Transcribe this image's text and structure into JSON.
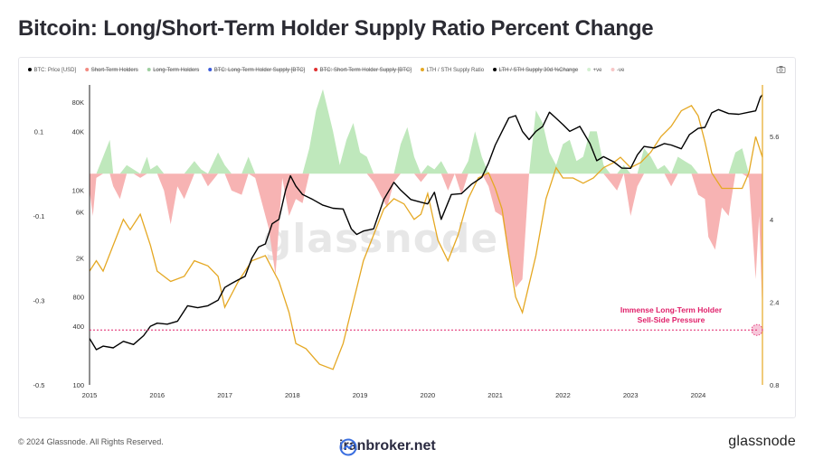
{
  "title": "Bitcoin: Long/Short-Term Holder Supply Ratio Percent Change",
  "legend": [
    {
      "label": "BTC: Price [USD]",
      "color": "#000000",
      "struck": false
    },
    {
      "label": "Short-Term Holders",
      "color": "#f28b82",
      "struck": true
    },
    {
      "label": "Long-Term Holders",
      "color": "#9ecfa0",
      "struck": true
    },
    {
      "label": "BTC: Long-Term Holder Supply [BTC]",
      "color": "#3b5bdb",
      "struck": true
    },
    {
      "label": "BTC: Short-Term Holder Supply [BTC]",
      "color": "#e03131",
      "struck": true
    },
    {
      "label": "LTH / STH Supply Ratio",
      "color": "#e5a823",
      "struck": false
    },
    {
      "label": "LTH / STH Supply 30d %Change",
      "color": "#000000",
      "struck": true
    },
    {
      "label": "+ve",
      "color": "#d3f0d1",
      "struck": false
    },
    {
      "label": "-ve",
      "color": "#f7c6c6",
      "struck": false
    }
  ],
  "camera_icon": "camera-icon",
  "annotation": {
    "line1": "Immense Long-Term Holder",
    "line2": "Sell-Side Pressure",
    "color": "#e0206a"
  },
  "watermark": "glassnode",
  "footer": {
    "copyright": "© 2024 Glassnode. All Rights Reserved.",
    "center_brand": "iranbroker.net",
    "right_brand": "glassnode"
  },
  "chart_data": {
    "type": "line",
    "x_ticks": [
      "2015",
      "2016",
      "2017",
      "2018",
      "2019",
      "2020",
      "2021",
      "2022",
      "2023",
      "2024"
    ],
    "x_range": [
      2015.0,
      2024.95
    ],
    "left_axis_pct_change": {
      "ticks": [
        "0.1",
        "-0.1",
        "-0.3",
        "-0.5"
      ],
      "range": [
        -0.5,
        0.21
      ]
    },
    "price_axis": {
      "ticks": [
        "80K",
        "40K",
        "10K",
        "6K",
        "2K",
        "800",
        "400",
        "100"
      ],
      "log": true,
      "range": [
        100,
        120000
      ]
    },
    "ratio_axis": {
      "ticks": [
        "5.6",
        "4",
        "2.4",
        "0.8"
      ],
      "range": [
        0.8,
        6.6
      ]
    },
    "zero_line": 0,
    "reference_level_pct": -0.37,
    "series": [
      {
        "name": "BTC: Price [USD]",
        "axis": "price",
        "color": "#000000",
        "x": [
          2015.0,
          2015.1,
          2015.2,
          2015.35,
          2015.5,
          2015.65,
          2015.8,
          2015.9,
          2016.0,
          2016.15,
          2016.3,
          2016.45,
          2016.6,
          2016.75,
          2016.9,
          2017.0,
          2017.1,
          2017.2,
          2017.3,
          2017.4,
          2017.5,
          2017.6,
          2017.7,
          2017.8,
          2017.9,
          2017.97,
          2018.05,
          2018.15,
          2018.3,
          2018.45,
          2018.6,
          2018.75,
          2018.87,
          2018.95,
          2019.05,
          2019.2,
          2019.35,
          2019.5,
          2019.6,
          2019.75,
          2019.9,
          2020.0,
          2020.1,
          2020.2,
          2020.35,
          2020.5,
          2020.65,
          2020.8,
          2020.9,
          2021.0,
          2021.1,
          2021.2,
          2021.3,
          2021.4,
          2021.5,
          2021.6,
          2021.7,
          2021.8,
          2021.87,
          2022.0,
          2022.1,
          2022.25,
          2022.4,
          2022.5,
          2022.6,
          2022.75,
          2022.87,
          2023.0,
          2023.1,
          2023.2,
          2023.35,
          2023.5,
          2023.6,
          2023.75,
          2023.87,
          2024.0,
          2024.1,
          2024.2,
          2024.3,
          2024.45,
          2024.6,
          2024.75,
          2024.85,
          2024.92,
          2024.95
        ],
        "values": [
          300,
          230,
          250,
          240,
          280,
          260,
          320,
          400,
          430,
          420,
          450,
          650,
          620,
          650,
          740,
          1000,
          1100,
          1200,
          1300,
          2000,
          2600,
          2800,
          4500,
          5000,
          10000,
          14000,
          11000,
          9000,
          8000,
          7000,
          6500,
          6400,
          4000,
          3500,
          3800,
          4000,
          8000,
          12000,
          10000,
          8000,
          7500,
          7200,
          9500,
          5000,
          9000,
          9200,
          11500,
          13500,
          19000,
          29000,
          40000,
          55000,
          58000,
          40000,
          33000,
          40000,
          45000,
          63000,
          57000,
          47000,
          40000,
          45000,
          30000,
          20000,
          22000,
          19500,
          16800,
          16700,
          23000,
          28000,
          27000,
          30000,
          29000,
          26500,
          37000,
          43000,
          44000,
          62000,
          67000,
          61000,
          60000,
          63000,
          65000,
          90000,
          95000
        ]
      },
      {
        "name": "LTH / STH Supply Ratio",
        "axis": "ratio",
        "color": "#e5a823",
        "x": [
          2015.0,
          2015.1,
          2015.2,
          2015.35,
          2015.5,
          2015.6,
          2015.75,
          2015.9,
          2016.0,
          2016.2,
          2016.4,
          2016.55,
          2016.75,
          2016.9,
          2017.0,
          2017.2,
          2017.4,
          2017.6,
          2017.8,
          2017.95,
          2018.05,
          2018.2,
          2018.4,
          2018.6,
          2018.75,
          2018.9,
          2019.05,
          2019.2,
          2019.35,
          2019.5,
          2019.65,
          2019.8,
          2019.9,
          2020.0,
          2020.15,
          2020.3,
          2020.45,
          2020.6,
          2020.75,
          2020.9,
          2021.0,
          2021.1,
          2021.2,
          2021.3,
          2021.4,
          2021.6,
          2021.75,
          2021.9,
          2022.0,
          2022.15,
          2022.3,
          2022.45,
          2022.6,
          2022.75,
          2022.85,
          2023.0,
          2023.15,
          2023.3,
          2023.45,
          2023.6,
          2023.75,
          2023.9,
          2024.0,
          2024.1,
          2024.2,
          2024.35,
          2024.5,
          2024.65,
          2024.75,
          2024.85,
          2024.95
        ],
        "values": [
          3.0,
          3.2,
          3.0,
          3.5,
          4.0,
          3.8,
          4.1,
          3.5,
          3.0,
          2.8,
          2.9,
          3.2,
          3.1,
          2.9,
          2.3,
          2.8,
          3.2,
          3.3,
          2.8,
          2.2,
          1.6,
          1.5,
          1.2,
          1.1,
          1.6,
          2.4,
          3.2,
          3.7,
          4.2,
          4.4,
          4.3,
          4.0,
          4.1,
          4.5,
          3.6,
          3.2,
          3.7,
          4.4,
          4.8,
          4.9,
          4.6,
          4.2,
          3.3,
          2.5,
          2.2,
          3.3,
          4.4,
          5.0,
          4.8,
          4.8,
          4.7,
          4.8,
          5.0,
          5.1,
          5.2,
          5.0,
          5.1,
          5.3,
          5.6,
          5.8,
          6.1,
          6.2,
          6.0,
          5.5,
          4.9,
          4.6,
          4.6,
          4.6,
          4.9,
          5.6,
          5.2
        ]
      },
      {
        "name": "LTH / STH Supply 30d %Change",
        "axis": "pct",
        "display": "area (+ve green / -ve red)",
        "x": [
          2015.0,
          2015.05,
          2015.1,
          2015.2,
          2015.3,
          2015.35,
          2015.45,
          2015.55,
          2015.65,
          2015.75,
          2015.85,
          2015.9,
          2016.0,
          2016.1,
          2016.2,
          2016.3,
          2016.4,
          2016.55,
          2016.65,
          2016.75,
          2016.9,
          2017.0,
          2017.1,
          2017.25,
          2017.35,
          2017.45,
          2017.55,
          2017.65,
          2017.75,
          2017.85,
          2017.95,
          2018.05,
          2018.15,
          2018.25,
          2018.35,
          2018.45,
          2018.6,
          2018.7,
          2018.8,
          2018.9,
          2019.0,
          2019.1,
          2019.2,
          2019.3,
          2019.4,
          2019.5,
          2019.6,
          2019.7,
          2019.8,
          2019.9,
          2020.0,
          2020.1,
          2020.2,
          2020.3,
          2020.4,
          2020.5,
          2020.6,
          2020.7,
          2020.8,
          2020.9,
          2021.0,
          2021.1,
          2021.2,
          2021.3,
          2021.4,
          2021.5,
          2021.6,
          2021.7,
          2021.8,
          2021.9,
          2022.0,
          2022.1,
          2022.2,
          2022.3,
          2022.4,
          2022.5,
          2022.6,
          2022.7,
          2022.8,
          2022.9,
          2023.0,
          2023.1,
          2023.2,
          2023.3,
          2023.4,
          2023.5,
          2023.6,
          2023.7,
          2023.8,
          2023.9,
          2024.0,
          2024.1,
          2024.15,
          2024.25,
          2024.35,
          2024.45,
          2024.55,
          2024.65,
          2024.75,
          2024.85,
          2024.9,
          2024.95
        ],
        "values": [
          -0.04,
          -0.1,
          -0.01,
          0.04,
          0.08,
          -0.03,
          -0.06,
          0.02,
          0.01,
          -0.01,
          0.04,
          0.01,
          0.02,
          -0.04,
          -0.12,
          -0.03,
          -0.06,
          0.03,
          0.01,
          -0.03,
          0.05,
          0.02,
          -0.04,
          -0.05,
          0.04,
          -0.01,
          -0.07,
          -0.13,
          -0.24,
          -0.01,
          -0.1,
          -0.06,
          -0.07,
          0.06,
          0.15,
          0.2,
          0.1,
          0.02,
          0.08,
          0.12,
          0.05,
          0.04,
          -0.02,
          -0.05,
          -0.08,
          -0.02,
          0.07,
          0.11,
          0.04,
          -0.02,
          0.02,
          0.01,
          0.03,
          -0.04,
          0.0,
          -0.05,
          0.03,
          0.1,
          0.04,
          -0.03,
          -0.09,
          -0.1,
          -0.2,
          -0.27,
          -0.25,
          0.0,
          0.15,
          0.12,
          0.05,
          0.02,
          0.07,
          0.08,
          0.03,
          0.04,
          0.1,
          0.1,
          0.02,
          -0.02,
          -0.04,
          0.02,
          -0.1,
          -0.03,
          0.06,
          0.04,
          0.01,
          0.02,
          -0.03,
          0.04,
          0.03,
          0.02,
          -0.05,
          -0.06,
          -0.15,
          -0.18,
          -0.08,
          -0.1,
          0.05,
          0.06,
          -0.01,
          -0.25,
          -0.1,
          -0.33
        ]
      }
    ]
  }
}
